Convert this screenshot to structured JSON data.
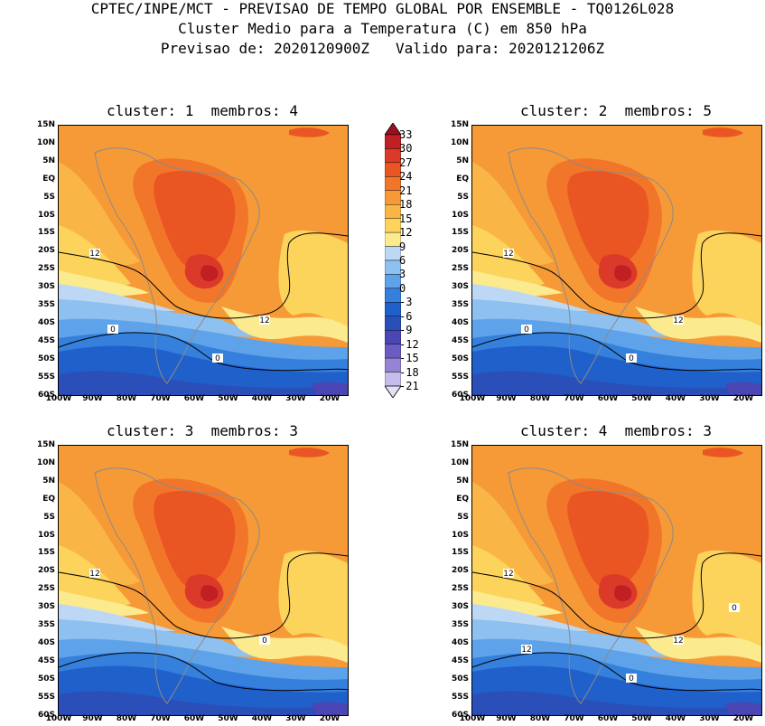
{
  "header": {
    "line1": "CPTEC/INPE/MCT - PREVISAO DE TEMPO GLOBAL POR ENSEMBLE - TQ0126L028",
    "line2": "Cluster Medio para a Temperatura (C) em 850 hPa",
    "line3": "Previsao de: 2020120900Z   Valido para: 2020121206Z"
  },
  "panels": [
    {
      "title": "cluster: 1  membros: 4",
      "contour_labels": [
        "12",
        "12",
        "0",
        "0"
      ]
    },
    {
      "title": "cluster: 2  membros: 5",
      "contour_labels": [
        "12",
        "12",
        "0",
        "0"
      ]
    },
    {
      "title": "cluster: 3  membros: 3",
      "contour_labels": [
        "12",
        "0"
      ]
    },
    {
      "title": "cluster: 4  membros: 3",
      "contour_labels": [
        "12",
        "12",
        "12",
        "0",
        "0"
      ]
    }
  ],
  "lat_ticks": [
    "15N",
    "10N",
    "5N",
    "EQ",
    "5S",
    "10S",
    "15S",
    "20S",
    "25S",
    "30S",
    "35S",
    "40S",
    "45S",
    "50S",
    "55S",
    "60S"
  ],
  "lon_ticks": [
    "100W",
    "90W",
    "80W",
    "70W",
    "60W",
    "50W",
    "40W",
    "30W",
    "20W"
  ],
  "colorbar": {
    "labels": [
      "33",
      "30",
      "27",
      "24",
      "21",
      "18",
      "15",
      "12",
      "9",
      "6",
      "3",
      "0",
      "-3",
      "-6",
      "-9",
      "-12",
      "-15",
      "-18",
      "-21"
    ],
    "colors": [
      "#9e0f1e",
      "#c01f24",
      "#db3a2b",
      "#ea5623",
      "#f2762a",
      "#f69a38",
      "#f9b647",
      "#fcd45c",
      "#fcea8e",
      "#bcd8f5",
      "#8ec0f0",
      "#5ea3ea",
      "#3580dc",
      "#2060cb",
      "#2a4fb9",
      "#4a46b4",
      "#6b5cc4",
      "#9583d6",
      "#c7bcec",
      "#e6e0f6"
    ]
  }
}
